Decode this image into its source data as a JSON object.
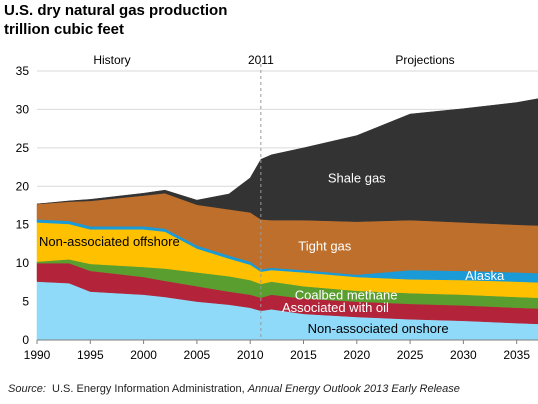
{
  "header": {
    "title": "U.S. dry natural gas production",
    "subtitle": "trillion cubic feet"
  },
  "source": {
    "prefix": "Source:",
    "agency": "U.S. Energy Information Administration,",
    "report": "Annual Energy Outlook 2013 Early Release"
  },
  "chart_data": {
    "type": "area",
    "stacked": true,
    "x": [
      1990,
      1993,
      1995,
      2000,
      2002,
      2005,
      2008,
      2010,
      2011,
      2012,
      2015,
      2020,
      2025,
      2030,
      2035,
      2037
    ],
    "series": [
      {
        "name": "Non-associated onshore",
        "label_color": "#000000",
        "color": "#8fd9f9",
        "values": [
          7.6,
          7.4,
          6.3,
          5.9,
          5.6,
          5.0,
          4.6,
          4.2,
          3.8,
          4.0,
          3.4,
          3.0,
          2.7,
          2.5,
          2.2,
          2.1
        ]
      },
      {
        "name": "Associated with oil",
        "label_color": "#ffffff",
        "color": "#b3243a",
        "values": [
          2.4,
          2.6,
          2.7,
          2.3,
          2.1,
          2.0,
          1.7,
          1.7,
          1.7,
          1.9,
          2.0,
          2.0,
          2.0,
          2.0,
          2.0,
          2.0
        ]
      },
      {
        "name": "Coalbed methane",
        "label_color": "#ffffff",
        "color": "#5a9e2f",
        "values": [
          0.2,
          0.5,
          0.9,
          1.3,
          1.6,
          1.8,
          2.0,
          1.9,
          1.8,
          1.7,
          1.6,
          1.4,
          1.4,
          1.4,
          1.4,
          1.4
        ]
      },
      {
        "name": "Non-associated offshore",
        "label_color": "#000000",
        "color": "#ffc000",
        "values": [
          5.1,
          4.6,
          4.5,
          4.9,
          4.8,
          3.1,
          2.3,
          2.0,
          1.6,
          1.5,
          1.8,
          1.8,
          1.8,
          1.9,
          2.0,
          2.0
        ]
      },
      {
        "name": "Alaska",
        "label_color": "#ffffff",
        "color": "#1a9ad6",
        "values": [
          0.4,
          0.4,
          0.4,
          0.4,
          0.4,
          0.4,
          0.4,
          0.4,
          0.3,
          0.3,
          0.3,
          0.3,
          1.2,
          1.2,
          1.2,
          1.2
        ]
      },
      {
        "name": "Tight gas",
        "label_color": "#ffffff",
        "color": "#bd6f2b",
        "values": [
          2.0,
          2.5,
          3.3,
          4.0,
          4.6,
          5.3,
          6.0,
          6.4,
          6.5,
          6.2,
          6.5,
          6.9,
          6.5,
          6.3,
          6.2,
          6.2
        ]
      },
      {
        "name": "Shale gas",
        "label_color": "#ffffff",
        "color": "#333333",
        "values": [
          0.0,
          0.1,
          0.2,
          0.3,
          0.4,
          0.6,
          2.0,
          4.5,
          7.8,
          8.5,
          9.4,
          11.2,
          13.8,
          14.8,
          15.9,
          16.5
        ]
      }
    ],
    "ylim": [
      0,
      35
    ],
    "yticks": [
      0,
      5,
      10,
      15,
      20,
      25,
      30,
      35
    ],
    "xlim": [
      1990,
      2037
    ],
    "xticks": [
      1990,
      1995,
      2000,
      2005,
      2010,
      2015,
      2020,
      2025,
      2030,
      2035
    ],
    "divider_year": 2011,
    "annotations": {
      "history": "History",
      "divider": "2011",
      "projections": "Projections"
    },
    "grid": "horizontal",
    "legend": "inline labels"
  }
}
